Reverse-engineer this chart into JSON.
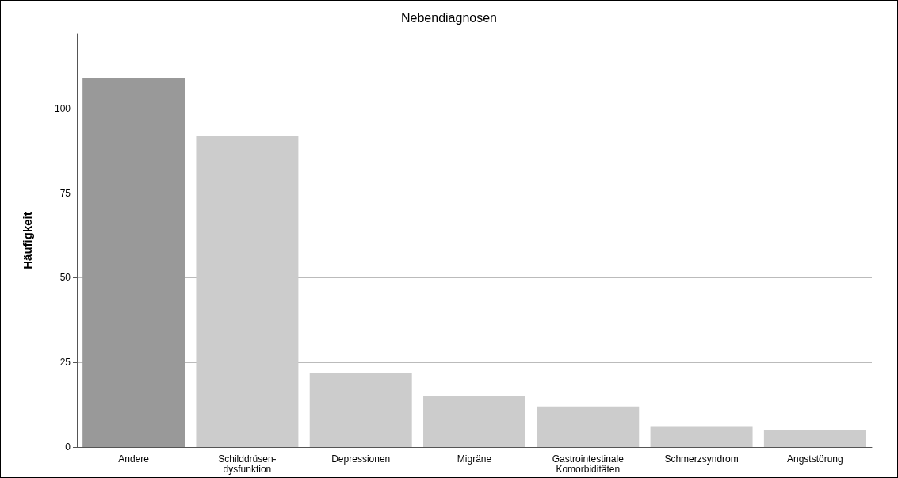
{
  "chart_data": {
    "type": "bar",
    "title": "Nebendiagnosen",
    "ylabel": "Häufigkeit",
    "categories": [
      "Andere",
      "Schilddrüsen-\ndysfunktion",
      "Depressionen",
      "Migräne",
      "Gastrointestinale\nKomorbiditäten",
      "Schmerzsyndrom",
      "Angststörung"
    ],
    "values": [
      109,
      92,
      22,
      15,
      12,
      6,
      5
    ],
    "colors": [
      "#999999",
      "#cccccc",
      "#cccccc",
      "#cccccc",
      "#cccccc",
      "#cccccc",
      "#cccccc"
    ],
    "ylim": [
      0,
      122
    ],
    "yticks": [
      0,
      25,
      50,
      75,
      100
    ],
    "grid": "y"
  }
}
